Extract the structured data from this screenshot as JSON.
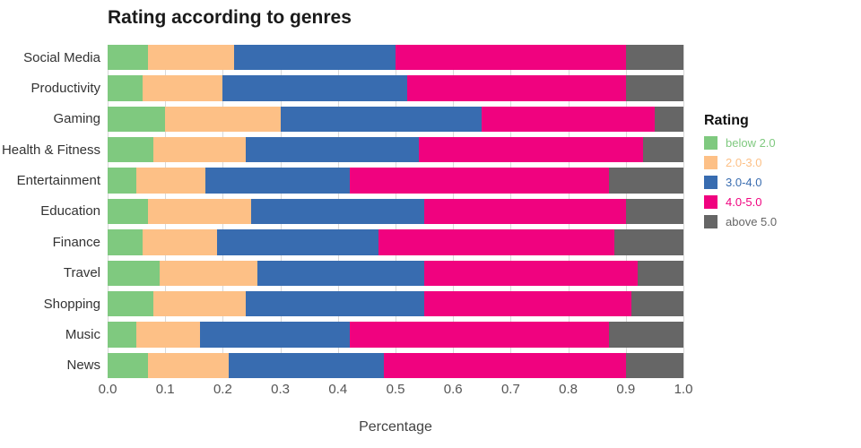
{
  "chart_data": {
    "type": "bar",
    "orientation": "horizontal",
    "stacked": true,
    "title": "Rating according to genres",
    "xlabel": "Percentage",
    "ylabel": "",
    "xlim": [
      0,
      1
    ],
    "x_ticks": [
      "0.0",
      "0.1",
      "0.2",
      "0.3",
      "0.4",
      "0.5",
      "0.6",
      "0.7",
      "0.8",
      "0.9",
      "1.0"
    ],
    "grid": true,
    "legend_title": "Rating",
    "legend_position": "right",
    "categories": [
      "Social Media",
      "Productivity",
      "Gaming",
      "Health & Fitness",
      "Entertainment",
      "Education",
      "Finance",
      "Travel",
      "Shopping",
      "Music",
      "News"
    ],
    "series": [
      {
        "name": "below 2.0",
        "color": "#7fc97f",
        "values": [
          0.07,
          0.06,
          0.1,
          0.08,
          0.05,
          0.07,
          0.06,
          0.09,
          0.08,
          0.05,
          0.07
        ]
      },
      {
        "name": "2.0-3.0",
        "color": "#fdc086",
        "values": [
          0.15,
          0.14,
          0.2,
          0.16,
          0.12,
          0.18,
          0.13,
          0.17,
          0.16,
          0.11,
          0.14
        ]
      },
      {
        "name": "3.0-4.0",
        "color": "#386cb0",
        "values": [
          0.28,
          0.32,
          0.35,
          0.3,
          0.25,
          0.3,
          0.28,
          0.29,
          0.31,
          0.26,
          0.27
        ]
      },
      {
        "name": "4.0-5.0",
        "color": "#f0027f",
        "values": [
          0.4,
          0.38,
          0.3,
          0.39,
          0.45,
          0.35,
          0.41,
          0.37,
          0.36,
          0.45,
          0.42
        ]
      },
      {
        "name": "above 5.0",
        "color": "#666666",
        "values": [
          0.1,
          0.1,
          0.05,
          0.07,
          0.13,
          0.1,
          0.12,
          0.08,
          0.09,
          0.13,
          0.1
        ]
      }
    ]
  }
}
